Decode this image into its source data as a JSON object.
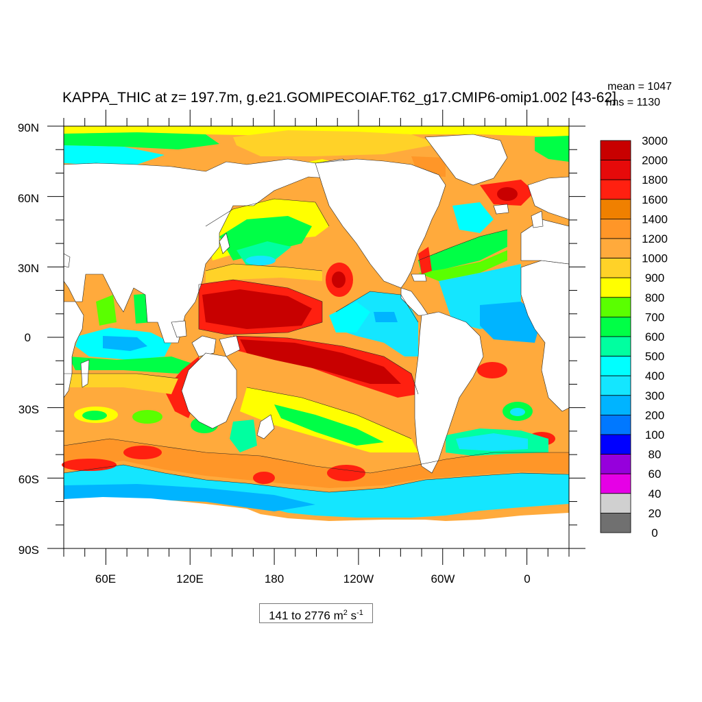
{
  "title": "KAPPA_THIC at z= 197.7m, g.e21.GOMIPECOIAF.T62_g17.CMIP6-omip1.002 [43-62]",
  "stats": {
    "mean": "mean = 1047",
    "rms": "rms = 1130"
  },
  "y_axis_labels": [
    "90N",
    "60N",
    "30N",
    "0",
    "30S",
    "60S",
    "90S"
  ],
  "x_axis_labels": [
    "60E",
    "120E",
    "180",
    "120W",
    "60W",
    "0"
  ],
  "range": {
    "prefix": "141 to 2776 m",
    "exp1": "2",
    "middle": " s",
    "exp2": "-1"
  },
  "colorbar": {
    "labels": [
      "3000",
      "2000",
      "1800",
      "1600",
      "1400",
      "1200",
      "1000",
      "900",
      "800",
      "700",
      "600",
      "500",
      "400",
      "300",
      "200",
      "100",
      "80",
      "60",
      "40",
      "20",
      "0"
    ],
    "colors": [
      "#c80000",
      "#e60a0a",
      "#ff2010",
      "#f08000",
      "#ff9628",
      "#ffaa3c",
      "#ffd228",
      "#ffff00",
      "#5aff00",
      "#00ff46",
      "#00ffa0",
      "#00ffff",
      "#14e6ff",
      "#00b4ff",
      "#0078ff",
      "#0000ff",
      "#9600dc",
      "#e600e6",
      "#d0d0d0",
      "#707070"
    ]
  },
  "map": {
    "projection": "cylindrical-equidistant",
    "lon_range": [
      30,
      390
    ],
    "lat_range": [
      -90,
      90
    ],
    "value_range": [
      141,
      2776
    ],
    "mean_value": 1047
  }
}
